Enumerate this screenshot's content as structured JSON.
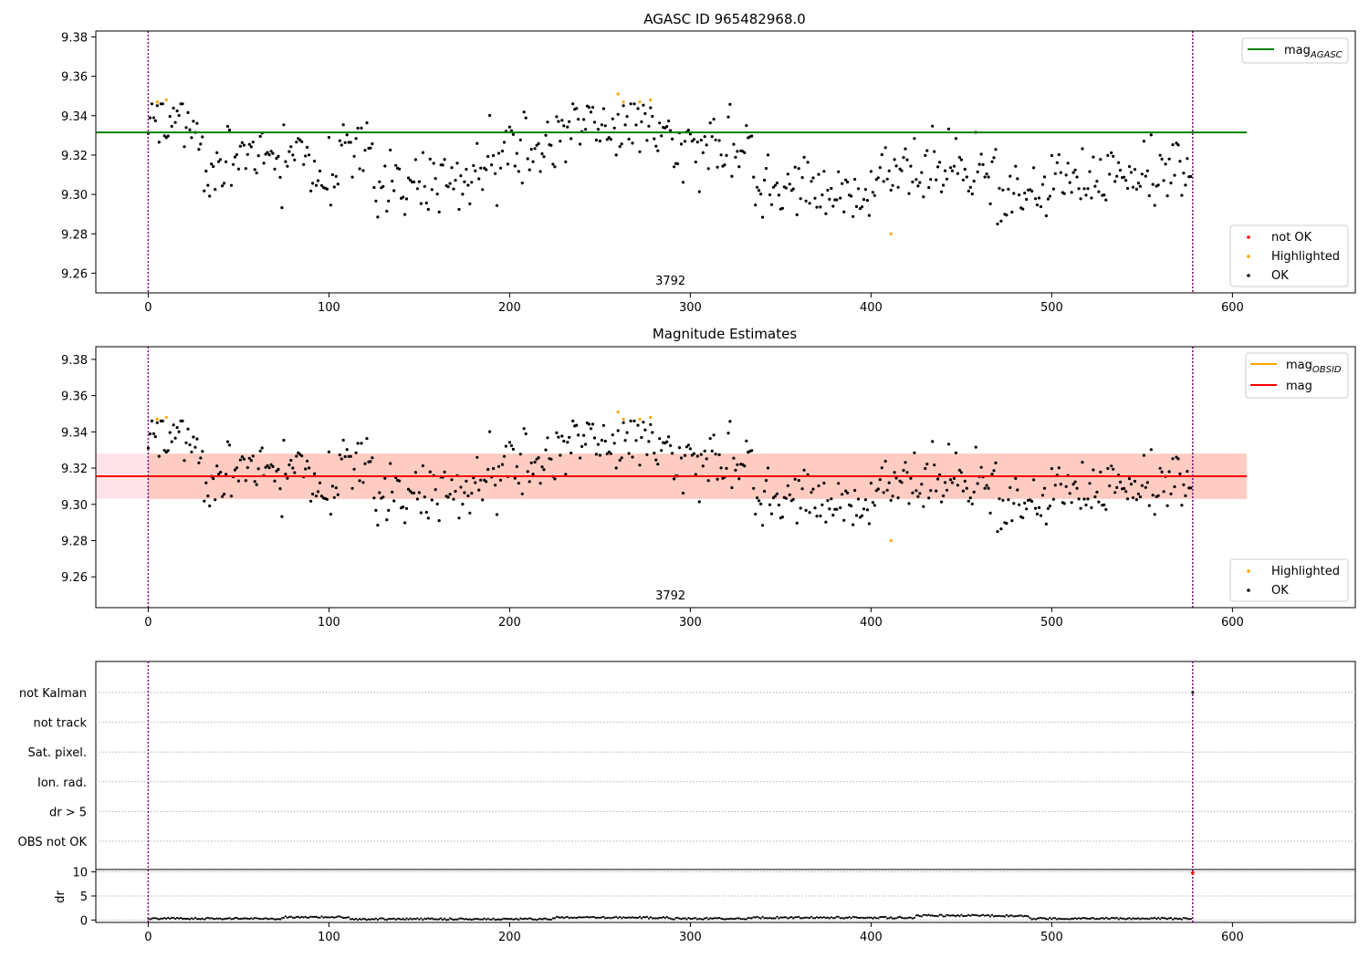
{
  "chart_data": [
    {
      "type": "scatter",
      "title": "AGASC ID 965482968.0",
      "xlim": [
        -29,
        668
      ],
      "ylim": [
        9.25,
        9.383
      ],
      "xticks": [
        0,
        100,
        200,
        300,
        400,
        500,
        600
      ],
      "yticks": [
        9.26,
        9.28,
        9.3,
        9.32,
        9.34,
        9.36,
        9.38
      ],
      "obsid_label": "3792",
      "obsid_label_x": 289,
      "obsid_boundaries": [
        0,
        578
      ],
      "mag_agasc": 9.3315,
      "mag_agasc_range": [
        -29,
        608
      ],
      "legend_lines": [
        {
          "name": "mag",
          "sub": "AGASC",
          "color": "#008000"
        }
      ],
      "legend_points": [
        {
          "name": "not OK",
          "color": "#ff0000"
        },
        {
          "name": "Highlighted",
          "color": "#ffa500"
        },
        {
          "name": "OK",
          "color": "#000000"
        }
      ],
      "legend_placement": {
        "lines": "upper-right",
        "points": "lower-right"
      },
      "highlighted_points": [
        [
          5,
          9.347
        ],
        [
          10,
          9.348
        ],
        [
          260,
          9.351
        ],
        [
          263,
          9.347
        ],
        [
          272,
          9.347
        ],
        [
          278,
          9.348
        ],
        [
          411,
          9.28
        ]
      ],
      "n_ok": 578,
      "series_seed": 2024
    },
    {
      "type": "scatter",
      "title": "Magnitude Estimates",
      "xlim": [
        -29,
        668
      ],
      "ylim": [
        9.243,
        9.387
      ],
      "xticks": [
        0,
        100,
        200,
        300,
        400,
        500,
        600
      ],
      "yticks": [
        9.26,
        9.28,
        9.3,
        9.32,
        9.34,
        9.36,
        9.38
      ],
      "obsid_label": "3792",
      "obsid_label_x": 289,
      "obsid_boundaries": [
        0,
        578
      ],
      "mag": 9.3155,
      "mag_band": [
        9.303,
        9.328
      ],
      "mag_range": [
        -29,
        608
      ],
      "mag_obsid_range": [
        0,
        578
      ],
      "legend_lines": [
        {
          "name": "mag",
          "sub": "OBSID",
          "color": "#ffa500"
        },
        {
          "name": "mag",
          "sub": "",
          "color": "#ff0000"
        }
      ],
      "legend_points": [
        {
          "name": "Highlighted",
          "color": "#ffa500"
        },
        {
          "name": "OK",
          "color": "#000000"
        }
      ],
      "legend_placement": {
        "lines": "upper-right",
        "points": "lower-right"
      },
      "highlighted_points": [
        [
          5,
          9.347
        ],
        [
          10,
          9.348
        ],
        [
          260,
          9.351
        ],
        [
          263,
          9.347
        ],
        [
          272,
          9.347
        ],
        [
          278,
          9.348
        ],
        [
          411,
          9.28
        ]
      ]
    },
    {
      "type": "scatter",
      "title": "",
      "xlim": [
        -29,
        668
      ],
      "flag_rows": [
        "not Kalman",
        "not track",
        "Sat. pixel.",
        "Ion. rad.",
        "dr > 5",
        "OBS not OK"
      ],
      "obsid_boundaries": [
        0,
        578
      ],
      "flagged_points": [
        {
          "row": "not Kalman",
          "x": 578
        }
      ]
    },
    {
      "type": "scatter",
      "xlim": [
        -29,
        668
      ],
      "ylim": [
        -0.5,
        10.5
      ],
      "xticks": [
        0,
        100,
        200,
        300,
        400,
        500,
        600
      ],
      "yticks": [
        0,
        5,
        10
      ],
      "ylabel": "dr",
      "obsid_boundaries": [
        0,
        578
      ],
      "dr_segments": [
        {
          "from": 0,
          "to": 75,
          "value": 0.3
        },
        {
          "from": 75,
          "to": 112,
          "value": 0.6
        },
        {
          "from": 112,
          "to": 225,
          "value": 0.2
        },
        {
          "from": 225,
          "to": 290,
          "value": 0.5
        },
        {
          "from": 290,
          "to": 333,
          "value": 0.3
        },
        {
          "from": 333,
          "to": 425,
          "value": 0.5
        },
        {
          "from": 425,
          "to": 488,
          "value": 0.9
        },
        {
          "from": 488,
          "to": 578,
          "value": 0.3
        }
      ],
      "dr_outlier": {
        "x": 578,
        "value": 9.8,
        "color": "#ff0000"
      }
    }
  ]
}
